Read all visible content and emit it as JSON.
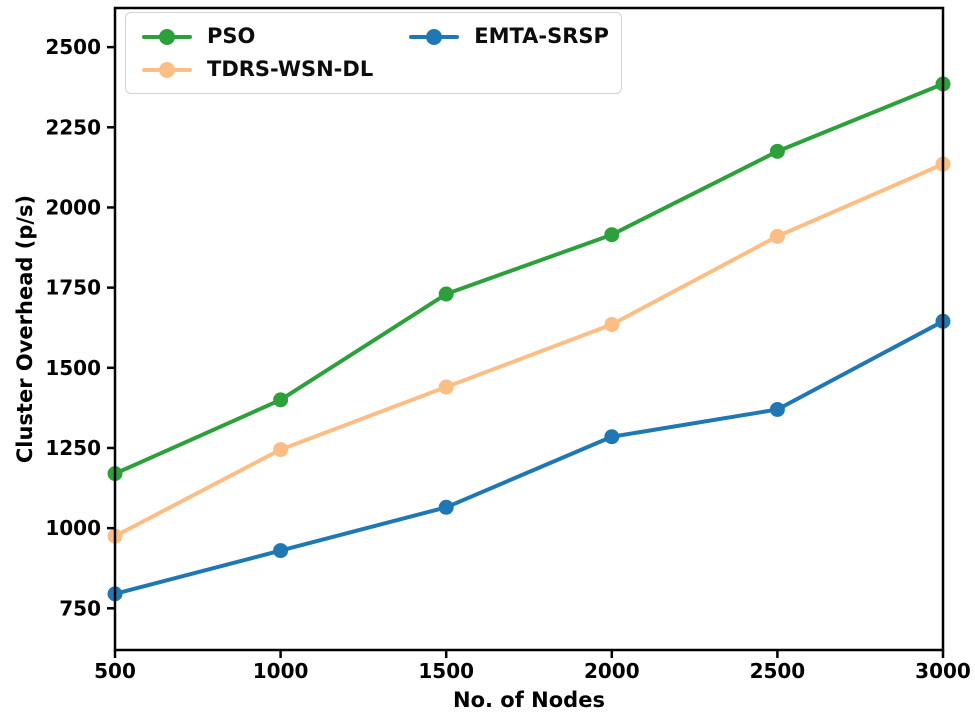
{
  "figure": {
    "background": "#ffffff",
    "spine_color": "#000000",
    "tick_color": "#000000",
    "text_color": "#000000"
  },
  "legend": {
    "position": "upper-left",
    "columns": 2,
    "items": [
      "PSO",
      "TDRS-WSN-DL",
      "EMTA-SRSP"
    ]
  },
  "chart_data": {
    "type": "line",
    "title": "",
    "xlabel": "No. of Nodes",
    "ylabel": "Cluster Overhead (p/s)",
    "x": [
      500,
      1000,
      1500,
      2000,
      2500,
      3000
    ],
    "series": [
      {
        "name": "PSO",
        "color": "#2da03c",
        "marker": "circle",
        "values": [
          1170,
          1400,
          1730,
          1915,
          2175,
          2385
        ]
      },
      {
        "name": "TDRS-WSN-DL",
        "color": "#fdbe85",
        "marker": "circle",
        "values": [
          975,
          1245,
          1440,
          1635,
          1910,
          2135
        ]
      },
      {
        "name": "EMTA-SRSP",
        "color": "#1f77b4",
        "marker": "circle",
        "values": [
          795,
          930,
          1065,
          1285,
          1370,
          1645
        ]
      }
    ],
    "xticks": [
      500,
      1000,
      1500,
      2000,
      2500,
      3000
    ],
    "yticks": [
      750,
      1000,
      1250,
      1500,
      1750,
      2000,
      2250,
      2500
    ],
    "xlim": [
      500,
      3000
    ],
    "ylim": [
      620,
      2622
    ],
    "grid": false,
    "legend_position": "upper-left"
  }
}
